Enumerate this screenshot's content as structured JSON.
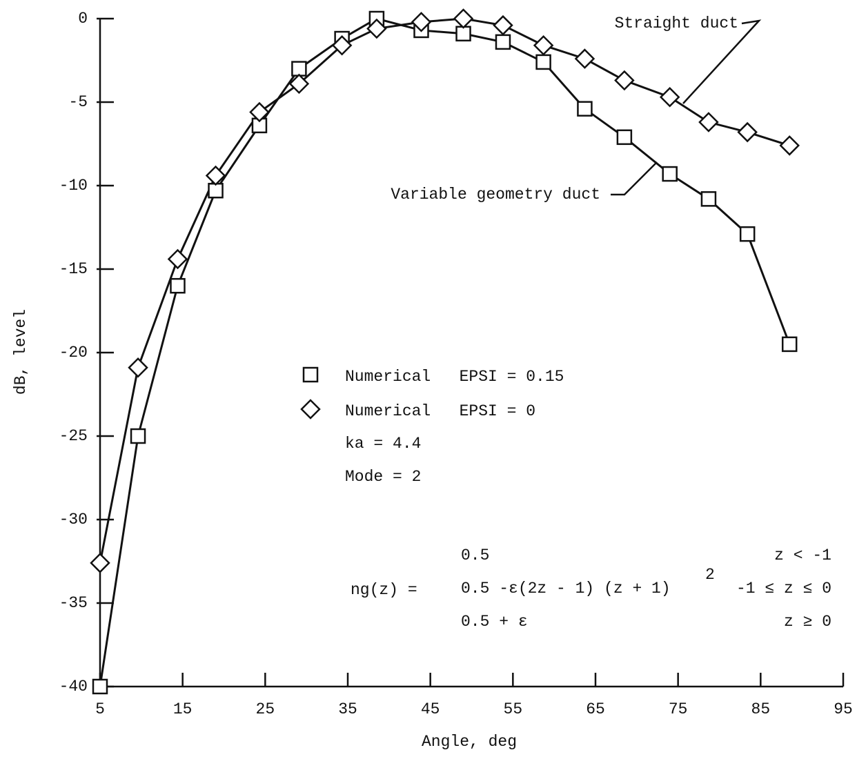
{
  "chart_data": {
    "type": "line",
    "x_label": "Angle, deg",
    "y_label": "dB, level",
    "x": [
      5,
      9.6,
      14.4,
      19,
      24.3,
      29.1,
      34.3,
      38.5,
      43.9,
      49,
      53.8,
      58.7,
      63.7,
      68.5,
      74,
      78.7,
      83.4,
      88.5
    ],
    "series": [
      {
        "name": "Numerical   EPSI = 0.15",
        "marker": "square",
        "color": "#111",
        "values": [
          -40,
          -25,
          -16,
          -10.3,
          -6.4,
          -3,
          -1.2,
          0,
          -0.7,
          -0.9,
          -1.4,
          -2.6,
          -5.4,
          -7.1,
          -9.3,
          -10.8,
          -12.9,
          -19.5
        ]
      },
      {
        "name": "Numerical   EPSI = 0",
        "marker": "diamond",
        "color": "#111",
        "values": [
          -32.6,
          -20.9,
          -14.4,
          -9.4,
          -5.6,
          -3.9,
          -1.6,
          -0.6,
          -0.2,
          0,
          -0.4,
          -1.6,
          -2.4,
          -3.7,
          -4.7,
          -6.2,
          -6.8,
          -7.6
        ]
      }
    ],
    "xlim": [
      5,
      95
    ],
    "xticks": [
      5,
      15,
      25,
      35,
      45,
      55,
      65,
      75,
      85,
      95
    ],
    "ylim": [
      -40,
      0
    ],
    "yticks": [
      0,
      -5,
      -10,
      -15,
      -20,
      -25,
      -30,
      -35,
      -40
    ],
    "annotations": [
      "Straight duct",
      "Variable geometry duct",
      "ka = 4.4",
      "Mode = 2"
    ],
    "formula": {
      "lhs": "ng(z) =",
      "rows": [
        {
          "expr": "0.5",
          "cond": "z < -1"
        },
        {
          "expr": "0.5 -ε(2z - 1) (z + 1)",
          "sup": "2",
          "cond": "-1 ≤ z ≤ 0"
        },
        {
          "expr": "0.5 + ε",
          "cond": "z ≥ 0"
        }
      ]
    }
  }
}
